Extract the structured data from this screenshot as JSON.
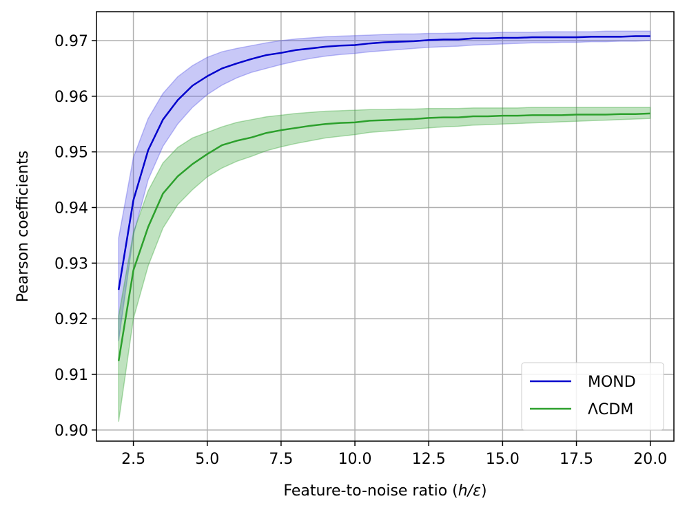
{
  "chart_data": {
    "type": "line",
    "xlabel": "Feature-to-noise ratio (h/ε)",
    "xlabel_parts": {
      "prefix": "Feature-to-noise ratio (",
      "italic": "h/ε",
      "suffix": ")"
    },
    "ylabel": "Pearson coefficients",
    "xlim": [
      1.25,
      20.8
    ],
    "ylim": [
      0.898,
      0.9752
    ],
    "xticks": [
      2.5,
      5.0,
      7.5,
      10.0,
      12.5,
      15.0,
      17.5,
      20.0
    ],
    "xtick_labels": [
      "2.5",
      "5.0",
      "7.5",
      "10.0",
      "12.5",
      "15.0",
      "17.5",
      "20.0"
    ],
    "yticks": [
      0.9,
      0.91,
      0.92,
      0.93,
      0.94,
      0.95,
      0.96,
      0.97
    ],
    "ytick_labels": [
      "0.90",
      "0.91",
      "0.92",
      "0.93",
      "0.94",
      "0.95",
      "0.96",
      "0.97"
    ],
    "grid": true,
    "legend_position": "lower-right",
    "x": [
      2.0,
      2.5,
      3.0,
      3.5,
      4.0,
      4.5,
      5.0,
      5.5,
      6.0,
      6.5,
      7.0,
      7.5,
      8.0,
      8.5,
      9.0,
      9.5,
      10.0,
      10.5,
      11.0,
      11.5,
      12.0,
      12.5,
      13.0,
      13.5,
      14.0,
      14.5,
      15.0,
      15.5,
      16.0,
      16.5,
      17.0,
      17.5,
      18.0,
      18.5,
      19.0,
      19.5,
      20.0
    ],
    "series": [
      {
        "name": "MOND",
        "color": "#0000cc",
        "band_color": "#4a4ae6",
        "values": [
          0.9252,
          0.9413,
          0.9503,
          0.9558,
          0.9593,
          0.9619,
          0.9636,
          0.965,
          0.9659,
          0.9667,
          0.9674,
          0.9678,
          0.9683,
          0.9686,
          0.9689,
          0.9691,
          0.9692,
          0.9695,
          0.9697,
          0.9698,
          0.9699,
          0.9701,
          0.9702,
          0.9702,
          0.9704,
          0.9704,
          0.9705,
          0.9705,
          0.9706,
          0.9706,
          0.9706,
          0.9706,
          0.9707,
          0.9707,
          0.9707,
          0.9708,
          0.9708
        ],
        "lower": [
          0.916,
          0.935,
          0.945,
          0.951,
          0.955,
          0.958,
          0.9603,
          0.962,
          0.9633,
          0.9643,
          0.965,
          0.9657,
          0.9663,
          0.9668,
          0.9672,
          0.9675,
          0.9677,
          0.968,
          0.9682,
          0.9684,
          0.9686,
          0.9688,
          0.9689,
          0.969,
          0.9692,
          0.9693,
          0.9694,
          0.9695,
          0.9696,
          0.9696,
          0.9697,
          0.9697,
          0.9698,
          0.9698,
          0.9699,
          0.9699,
          0.97
        ],
        "upper": [
          0.9345,
          0.949,
          0.956,
          0.9605,
          0.9635,
          0.9655,
          0.967,
          0.968,
          0.9686,
          0.9691,
          0.9696,
          0.97,
          0.9703,
          0.9705,
          0.9707,
          0.9708,
          0.9709,
          0.971,
          0.9711,
          0.9712,
          0.9712,
          0.9713,
          0.9713,
          0.9714,
          0.9714,
          0.9714,
          0.9715,
          0.9715,
          0.9715,
          0.9716,
          0.9716,
          0.9716,
          0.9716,
          0.9717,
          0.9717,
          0.9717,
          0.9717
        ]
      },
      {
        "name": "ΛCDM",
        "color": "#2ca02c",
        "band_color": "#2ca02c",
        "values": [
          0.9124,
          0.9287,
          0.9365,
          0.9425,
          0.9456,
          0.9478,
          0.9496,
          0.9512,
          0.952,
          0.9526,
          0.9534,
          0.9539,
          0.9543,
          0.9547,
          0.955,
          0.9552,
          0.9553,
          0.9556,
          0.9557,
          0.9558,
          0.9559,
          0.9561,
          0.9562,
          0.9562,
          0.9564,
          0.9564,
          0.9565,
          0.9565,
          0.9566,
          0.9566,
          0.9566,
          0.9567,
          0.9567,
          0.9567,
          0.9568,
          0.9568,
          0.9569
        ],
        "lower": [
          0.9015,
          0.92,
          0.9295,
          0.9363,
          0.9405,
          0.9432,
          0.9455,
          0.9471,
          0.9483,
          0.9492,
          0.9502,
          0.9509,
          0.9515,
          0.952,
          0.9525,
          0.9528,
          0.9531,
          0.9535,
          0.9537,
          0.9539,
          0.9541,
          0.9543,
          0.9545,
          0.9546,
          0.9548,
          0.9549,
          0.955,
          0.9551,
          0.9552,
          0.9553,
          0.9554,
          0.9555,
          0.9556,
          0.9557,
          0.9558,
          0.9559,
          0.956
        ],
        "upper": [
          0.9205,
          0.9355,
          0.943,
          0.948,
          0.9508,
          0.9525,
          0.9535,
          0.9545,
          0.9553,
          0.9558,
          0.9563,
          0.9566,
          0.9569,
          0.9571,
          0.9573,
          0.9574,
          0.9575,
          0.9576,
          0.9576,
          0.9577,
          0.9577,
          0.9578,
          0.9578,
          0.9578,
          0.9579,
          0.9579,
          0.9579,
          0.9579,
          0.958,
          0.958,
          0.958,
          0.958,
          0.958,
          0.958,
          0.958,
          0.958,
          0.958
        ]
      }
    ]
  }
}
